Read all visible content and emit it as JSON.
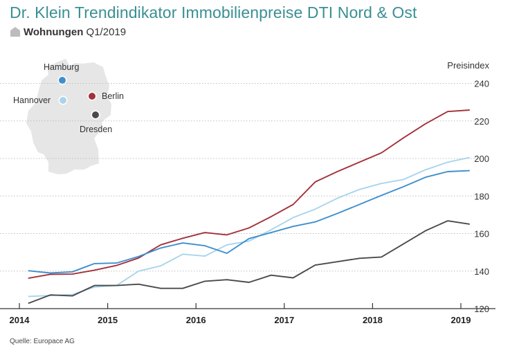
{
  "header": {
    "title": "Dr. Klein Trendindikator Immobilienpreise DTI Nord & Ost",
    "subtitle_bold": "Wohnungen",
    "subtitle_rest": "Q1/2019"
  },
  "source": "Quelle: Europace AG",
  "icons": {
    "subtitle": "house-icon",
    "map": "germany-map-icon"
  },
  "map_labels": [
    {
      "name": "Hamburg",
      "color": "#3d8fce"
    },
    {
      "name": "Berlin",
      "color": "#a3313a"
    },
    {
      "name": "Hannover",
      "color": "#a9d4ec"
    },
    {
      "name": "Dresden",
      "color": "#4a4a4a"
    }
  ],
  "chart_data": {
    "type": "line",
    "title": "Dr. Klein Trendindikator Immobilienpreise DTI Nord & Ost",
    "xlabel": "",
    "ylabel": "Preisindex",
    "ylim": [
      120,
      245
    ],
    "xlim": [
      2014.0,
      2019.25
    ],
    "yticks": [
      120,
      140,
      160,
      180,
      200,
      220,
      240
    ],
    "xticks": [
      "2014",
      "2015",
      "2016",
      "2017",
      "2018",
      "2019"
    ],
    "grid": true,
    "x": [
      2014.1,
      2014.35,
      2014.6,
      2014.85,
      2015.1,
      2015.35,
      2015.6,
      2015.85,
      2016.1,
      2016.35,
      2016.6,
      2016.85,
      2017.1,
      2017.35,
      2017.6,
      2017.85,
      2018.1,
      2018.35,
      2018.6,
      2018.85,
      2019.1
    ],
    "series": [
      {
        "name": "Berlin",
        "color": "#a3313a",
        "values": [
          136.2,
          138.3,
          138.4,
          140.5,
          143.0,
          147.0,
          154.0,
          157.5,
          160.5,
          159.3,
          163.0,
          169.0,
          175.5,
          187.5,
          193.0,
          198.0,
          203.0,
          211.0,
          218.5,
          225.0,
          225.8
        ]
      },
      {
        "name": "Hannover",
        "color": "#a9d4ec",
        "values": [
          126.5,
          127.0,
          127.5,
          131.5,
          132.3,
          140.0,
          142.8,
          149.0,
          148.0,
          154.0,
          156.0,
          162.0,
          168.5,
          173.0,
          178.8,
          183.5,
          186.7,
          188.8,
          194.0,
          198.0,
          200.5
        ]
      },
      {
        "name": "Hamburg",
        "color": "#3d8fce",
        "values": [
          140.2,
          139.0,
          139.6,
          144.0,
          144.3,
          147.8,
          152.3,
          155.0,
          153.5,
          149.5,
          157.3,
          160.5,
          163.8,
          166.2,
          170.7,
          175.5,
          180.3,
          185.0,
          190.0,
          193.0,
          193.5
        ]
      },
      {
        "name": "Dresden",
        "color": "#4a4a4a",
        "values": [
          122.8,
          127.3,
          126.8,
          132.3,
          132.3,
          133.0,
          130.8,
          130.8,
          134.6,
          135.4,
          134.0,
          137.8,
          136.4,
          143.2,
          145.0,
          146.8,
          147.5,
          154.5,
          161.5,
          166.8,
          165.0
        ]
      }
    ]
  }
}
